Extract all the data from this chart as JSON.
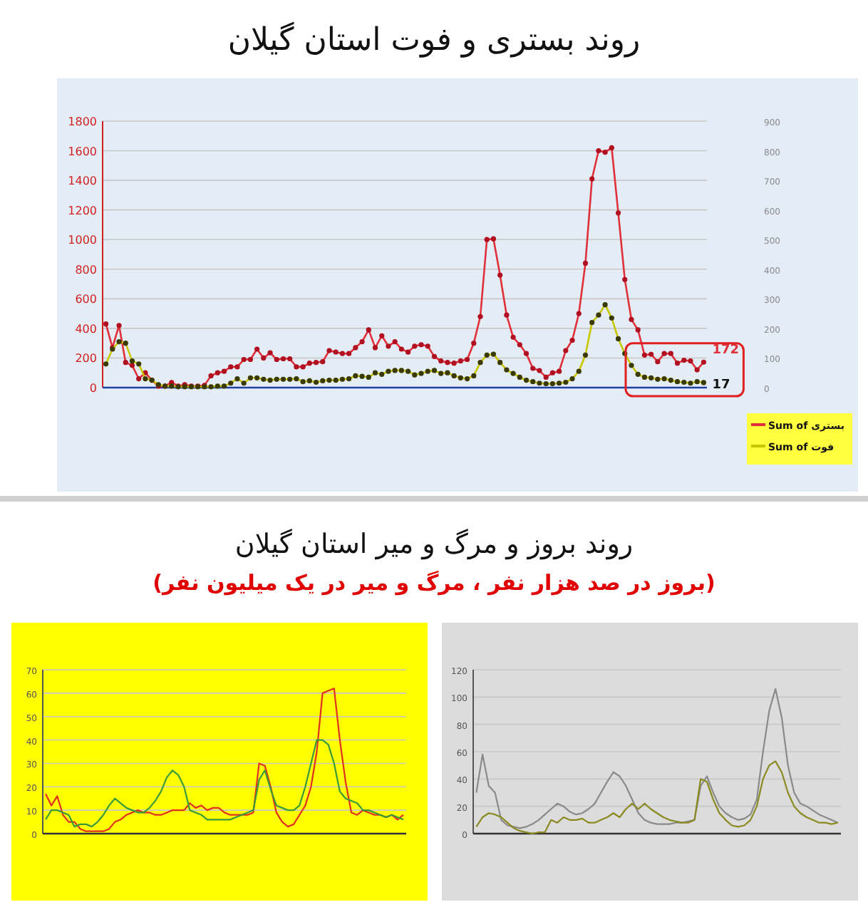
{
  "chart_data": [
    {
      "type": "line",
      "title": "روند بستری و فوت استان گیلان",
      "categories": [
        null,
        null,
        null,
        null,
        null,
        null,
        null,
        null,
        null,
        null,
        null,
        null,
        null,
        null,
        null,
        null,
        null,
        null,
        null,
        null,
        null,
        null,
        null,
        null,
        null,
        null,
        null,
        null,
        null,
        null,
        null,
        null,
        null,
        null,
        null,
        null,
        null,
        null,
        null,
        null,
        null,
        null,
        null,
        null,
        null,
        null,
        null,
        null,
        null,
        null,
        null,
        null,
        null,
        null,
        null,
        null,
        null,
        null,
        null,
        null,
        null,
        null,
        null,
        null,
        null,
        null,
        null,
        null,
        null,
        null,
        null,
        null,
        null,
        null,
        null,
        null,
        null,
        null,
        null,
        null,
        null,
        null,
        null,
        null,
        null,
        null,
        null,
        null,
        null,
        null,
        null,
        null
      ],
      "series": [
        {
          "name": "Sum of بستری",
          "color": "#e0303a",
          "values": [
            430,
            270,
            420,
            170,
            150,
            60,
            100,
            50,
            10,
            10,
            35,
            10,
            20,
            10,
            10,
            15,
            80,
            100,
            110,
            140,
            140,
            190,
            190,
            260,
            200,
            235,
            190,
            195,
            195,
            140,
            140,
            165,
            170,
            175,
            250,
            240,
            230,
            230,
            270,
            310,
            390,
            270,
            350,
            280,
            310,
            260,
            240,
            280,
            290,
            280,
            210,
            180,
            170,
            165,
            180,
            190,
            300,
            480,
            1000,
            1005,
            760,
            490,
            340,
            290,
            230,
            130,
            115,
            70,
            100,
            110,
            250,
            320,
            500,
            840,
            1410,
            1600,
            1590,
            1620,
            1180,
            730,
            460,
            390,
            220,
            225,
            175,
            230,
            230,
            165,
            185,
            180,
            120,
            172
          ],
          "value_labels": [
            null,
            null,
            null,
            null,
            null,
            null,
            null,
            null,
            null,
            null,
            null,
            null,
            null,
            null,
            null,
            null,
            null,
            null,
            null,
            null,
            null,
            null,
            null,
            null,
            null,
            null,
            null,
            null,
            null,
            null,
            null,
            null,
            null,
            null,
            null,
            null,
            null,
            null,
            null,
            null,
            null,
            null,
            null,
            null,
            null,
            null,
            null,
            null,
            null,
            null,
            null,
            null,
            null,
            null,
            null,
            null,
            null,
            null,
            null,
            null,
            null,
            null,
            null,
            null,
            null,
            null,
            null,
            null,
            null,
            null,
            null,
            null,
            null,
            null,
            null,
            null,
            null,
            null,
            null,
            null,
            null,
            null,
            null,
            null,
            null,
            null,
            null,
            null,
            null,
            null,
            null,
            "172"
          ]
        },
        {
          "name": "Sum of فوت",
          "color": "#c8c800",
          "axis": "y2",
          "values": [
            80,
            130,
            155,
            150,
            90,
            80,
            30,
            25,
            10,
            5,
            5,
            3,
            3,
            3,
            3,
            3,
            3,
            5,
            5,
            15,
            30,
            15,
            33,
            33,
            28,
            25,
            28,
            28,
            28,
            30,
            20,
            23,
            18,
            23,
            25,
            25,
            28,
            30,
            40,
            38,
            35,
            50,
            45,
            55,
            58,
            58,
            55,
            43,
            48,
            55,
            58,
            48,
            50,
            40,
            33,
            30,
            40,
            85,
            110,
            113,
            85,
            60,
            48,
            35,
            25,
            20,
            15,
            13,
            13,
            15,
            18,
            30,
            55,
            110,
            220,
            245,
            280,
            235,
            165,
            115,
            75,
            45,
            35,
            33,
            28,
            30,
            25,
            20,
            18,
            15,
            20,
            17
          ],
          "value_labels": [
            null,
            null,
            null,
            null,
            null,
            null,
            null,
            null,
            null,
            null,
            null,
            null,
            null,
            null,
            null,
            null,
            null,
            null,
            null,
            null,
            null,
            null,
            null,
            null,
            null,
            null,
            null,
            null,
            null,
            null,
            null,
            null,
            null,
            null,
            null,
            null,
            null,
            null,
            null,
            null,
            null,
            null,
            null,
            null,
            null,
            null,
            null,
            null,
            null,
            null,
            null,
            null,
            null,
            null,
            null,
            null,
            null,
            null,
            null,
            null,
            null,
            null,
            null,
            null,
            null,
            null,
            null,
            null,
            null,
            null,
            null,
            null,
            null,
            null,
            null,
            null,
            null,
            null,
            null,
            null,
            null,
            null,
            null,
            null,
            null,
            null,
            null,
            null,
            null,
            null,
            null,
            "17"
          ]
        }
      ],
      "ylim": [
        0,
        1800
      ],
      "yticks": [
        0,
        200,
        400,
        600,
        800,
        1000,
        1200,
        1400,
        1600,
        1800
      ],
      "y2lim": [
        0,
        900
      ],
      "y2ticks": [
        0,
        100,
        200,
        300,
        400,
        500,
        600,
        700,
        800,
        900
      ],
      "grid": "y",
      "legend": "bottom right",
      "marker": "circle"
    },
    {
      "type": "line",
      "title": "روند بروز و مرگ و میر استان گیلان",
      "subtitle": "(بروز در صد هزار نفر ، مرگ و میر در یک میلیون نفر)",
      "categories": [
        null,
        null,
        null,
        null,
        null,
        null,
        null,
        null,
        null,
        null,
        null,
        null,
        null,
        null,
        null,
        null,
        null,
        null,
        null,
        null,
        null,
        null,
        null,
        null,
        null,
        null,
        null,
        null,
        null,
        null,
        null,
        null,
        null,
        null,
        null,
        null,
        null,
        null,
        null,
        null,
        null,
        null,
        null,
        null,
        null,
        null,
        null,
        null,
        null,
        null,
        null,
        null,
        null,
        null,
        null,
        null,
        null,
        null,
        null,
        null,
        null,
        null,
        null
      ],
      "series": [
        {
          "color": "#e03020",
          "values": [
            17,
            12,
            16,
            8,
            5,
            5,
            2,
            1,
            1,
            1,
            1,
            2,
            5,
            6,
            8,
            9,
            10,
            9,
            9,
            8,
            8,
            9,
            10,
            10,
            10,
            13,
            11,
            12,
            10,
            11,
            11,
            9,
            8,
            8,
            8,
            8,
            9,
            30,
            29,
            20,
            9,
            5,
            3,
            4,
            8,
            12,
            20,
            35,
            60,
            61,
            62,
            40,
            22,
            9,
            8,
            10,
            9,
            8,
            8,
            7,
            8,
            6,
            8
          ]
        },
        {
          "color": "#3a9a3a",
          "values": [
            6,
            10,
            10,
            9,
            8,
            3,
            4,
            4,
            3,
            5,
            8,
            12,
            15,
            13,
            11,
            10,
            9,
            9,
            11,
            14,
            18,
            24,
            27,
            25,
            20,
            10,
            9,
            8,
            6,
            6,
            6,
            6,
            6,
            7,
            8,
            9,
            10,
            23,
            27,
            19,
            12,
            11,
            10,
            10,
            12,
            20,
            30,
            40,
            40,
            38,
            30,
            18,
            15,
            14,
            13,
            10,
            10,
            9,
            8,
            7,
            8,
            7,
            6
          ]
        }
      ],
      "ylim": [
        0,
        70
      ],
      "yticks": [
        0,
        10,
        20,
        30,
        40,
        50,
        60,
        70
      ],
      "grid": "y"
    },
    {
      "type": "line",
      "categories": [
        null,
        null,
        null,
        null,
        null,
        null,
        null,
        null,
        null,
        null,
        null,
        null,
        null,
        null,
        null,
        null,
        null,
        null,
        null,
        null,
        null,
        null,
        null,
        null,
        null,
        null,
        null,
        null,
        null,
        null,
        null,
        null,
        null,
        null,
        null,
        null,
        null,
        null,
        null,
        null,
        null,
        null,
        null,
        null,
        null,
        null,
        null,
        null,
        null,
        null,
        null,
        null,
        null,
        null,
        null,
        null,
        null,
        null,
        null
      ],
      "series": [
        {
          "color": "#8a8a8a",
          "values": [
            30,
            58,
            35,
            30,
            10,
            6,
            5,
            4,
            5,
            7,
            10,
            14,
            18,
            22,
            20,
            16,
            14,
            15,
            18,
            22,
            30,
            38,
            45,
            42,
            35,
            25,
            15,
            10,
            8,
            7,
            7,
            7,
            8,
            8,
            9,
            10,
            35,
            42,
            30,
            20,
            15,
            12,
            10,
            11,
            14,
            25,
            60,
            90,
            106,
            85,
            50,
            30,
            22,
            20,
            17,
            14,
            12,
            10,
            8
          ]
        },
        {
          "color": "#8a8a20",
          "values": [
            5,
            12,
            15,
            14,
            12,
            8,
            4,
            2,
            1,
            0,
            1,
            1,
            10,
            8,
            12,
            10,
            10,
            11,
            8,
            8,
            10,
            12,
            15,
            12,
            18,
            22,
            18,
            22,
            18,
            15,
            12,
            10,
            9,
            8,
            8,
            10,
            40,
            38,
            25,
            15,
            10,
            6,
            5,
            6,
            10,
            20,
            40,
            50,
            53,
            45,
            30,
            20,
            15,
            12,
            10,
            8,
            8,
            7,
            8
          ]
        }
      ],
      "ylim": [
        0,
        120
      ],
      "yticks": [
        0,
        20,
        40,
        60,
        80,
        100,
        120
      ],
      "grid": "y"
    }
  ]
}
